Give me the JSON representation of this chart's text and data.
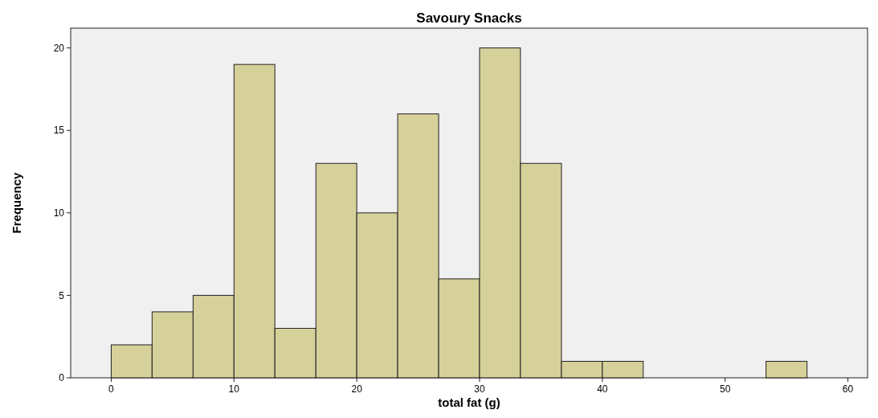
{
  "chart_data": {
    "type": "histogram",
    "title": "Savoury Snacks",
    "xlabel": "total fat (g)",
    "ylabel": "Frequency",
    "bins": [
      0,
      3.33,
      6.67,
      10,
      13.33,
      16.67,
      20,
      23.33,
      26.67,
      30,
      33.33,
      36.67,
      40,
      43.33,
      46.67,
      50,
      53.33,
      56.67
    ],
    "values": [
      2,
      4,
      5,
      19,
      3,
      13,
      10,
      16,
      6,
      20,
      13,
      1,
      1,
      0,
      0,
      0,
      1
    ],
    "color": "#d6d09a",
    "xlim": [
      -3.3,
      61.6
    ],
    "xticks": [
      0,
      10,
      20,
      30,
      40,
      50,
      60
    ],
    "ylim": [
      0,
      21.2
    ],
    "yticks": [
      0,
      5,
      10,
      15,
      20
    ],
    "grid": false
  }
}
